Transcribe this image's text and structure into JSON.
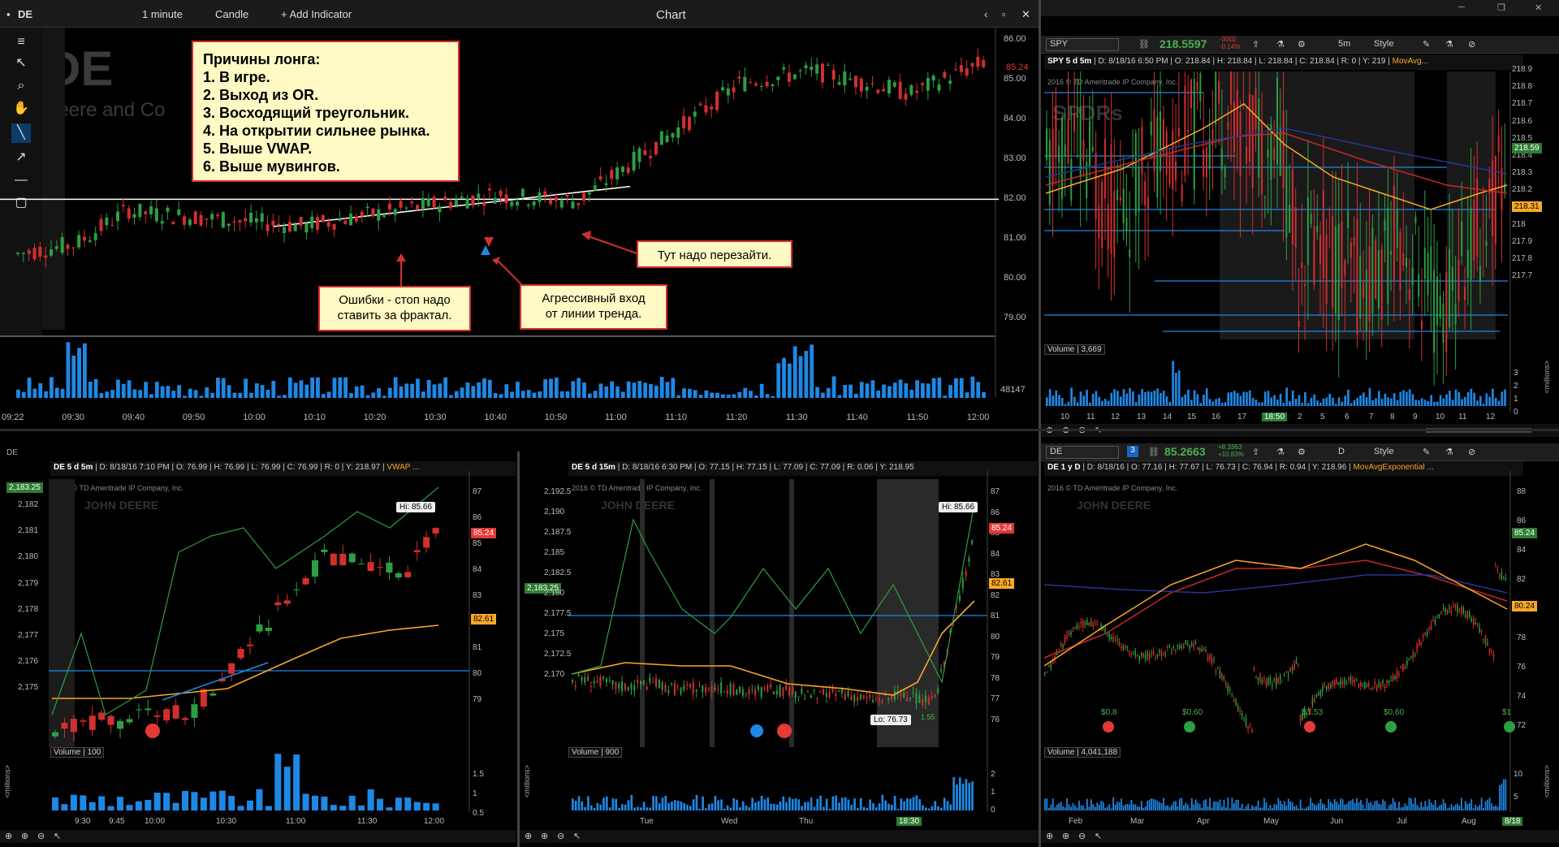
{
  "main_chart": {
    "symbol": "DE",
    "interval": "1 minute",
    "chart_type": "Candle",
    "add_indicator": "+ Add Indicator",
    "window_title": "Chart",
    "watermark_symbol": "DE",
    "watermark_name": "Deere and Co",
    "price_labels": [
      "86.00",
      "85.00",
      "84.00",
      "83.00",
      "82.00",
      "81.00",
      "80.00",
      "79.00"
    ],
    "current_price": "85.24",
    "time_labels": [
      "09:22",
      "09:30",
      "09:40",
      "09:50",
      "10:00",
      "10:10",
      "10:20",
      "10:30",
      "10:40",
      "10:50",
      "11:00",
      "11:10",
      "11:20",
      "11:30",
      "11:40",
      "11:50",
      "12:00"
    ],
    "volume_value": "48147",
    "notes": {
      "main_title": "Причины лонга:",
      "main_items": [
        "1. В игре.",
        "2. Выход из OR.",
        "3. Восходящий треугольник.",
        "4. На открытии сильнее рынка.",
        "5. Выше VWAP.",
        "6. Выше мувингов."
      ],
      "stop_line1": "Ошибки - стоп надо",
      "stop_line2": "ставить за фрактал.",
      "entry_line1": "Агрессивный вход",
      "entry_line2": "от линии тренда.",
      "reenter": "Тут надо перезайти."
    }
  },
  "spy_chart": {
    "symbol": "SPY",
    "price": "218.5597",
    "change": "-3002",
    "change_pct": "-0.14%",
    "interval": "5m",
    "style_label": "Style",
    "header": "SPY 5 d 5m",
    "d": "D: 8/18/16 6:50 PM",
    "o": "O: 218.84",
    "h": "H: 218.84",
    "l": "L: 218.84",
    "c": "C: 218.84",
    "r": "R: 0",
    "y": "Y: 219",
    "study": "MovAvg...",
    "copyright": "2016 © TD Ameritrade IP Company, Inc.",
    "watermark": "SPDRs",
    "price_labels": [
      "218.9",
      "218.8",
      "218.7",
      "218.6",
      "218.5",
      "218.4",
      "218.3",
      "218.2",
      "218.1",
      "218",
      "217.9",
      "217.8",
      "217.7"
    ],
    "tag_price_green": "218.59",
    "tag_price_yellow": "218.31",
    "volume_label": "Volume",
    "volume_value": "3,669",
    "vol_axis": [
      "3",
      "2",
      "1",
      "0"
    ],
    "vol_axis_unit": "<millions>",
    "time_labels": [
      "10",
      "11",
      "12",
      "13",
      "14",
      "15",
      "16",
      "17",
      "18:50",
      "2",
      "5",
      "6",
      "7",
      "8",
      "9",
      "10",
      "11",
      "12"
    ]
  },
  "de5m": {
    "header": "DE 5 d 5m",
    "d": "D: 8/18/16 7:10 PM",
    "o": "O: 76.99",
    "h": "H: 76.99",
    "l": "L: 76.99",
    "c": "C: 76.99",
    "r": "R: 0",
    "y": "Y: 218.97",
    "study": "VWAP ...",
    "copyright": "2016 © TD Ameritrade IP Company, Inc.",
    "watermark": "JOHN DEERE",
    "left_tag": "2,183.25",
    "left_axis": [
      "2,182",
      "2,181",
      "2,180",
      "2,179",
      "2,178",
      "2,177",
      "2,176",
      "2,175"
    ],
    "right_axis": [
      "87",
      "86",
      "85",
      "84",
      "83",
      "82",
      "81",
      "80",
      "79"
    ],
    "hi_label": "Hi: 85.66",
    "tag_red": "85.24",
    "tag_yellow": "82.61",
    "volume_label": "Volume",
    "volume_value": "100",
    "vol_axis": [
      "1.5",
      "1",
      "0.5"
    ],
    "vol_axis_unit": "<millions>",
    "time_labels": [
      "9:30",
      "9:45",
      "10:00",
      "10:30",
      "11:00",
      "11:30",
      "12:00"
    ],
    "tab_label": "DE"
  },
  "de15m": {
    "header": "DE 5 d 15m",
    "d": "D: 8/18/16 6:30 PM",
    "o": "O: 77.15",
    "h": "H: 77.15",
    "l": "L: 77.09",
    "c": "C: 77.09",
    "r": "R: 0.06",
    "y": "Y: 218.95",
    "copyright": "2016 © TD Ameritrade IP Company, Inc.",
    "watermark": "JOHN DEERE",
    "left_tag": "2,183.25",
    "left_axis": [
      "2,192.5",
      "2,190",
      "2,187.5",
      "2,185",
      "2,182.5",
      "2,180",
      "2,177.5",
      "2,175",
      "2,172.5",
      "2,170"
    ],
    "right_axis": [
      "87",
      "86",
      "85",
      "84",
      "83",
      "82",
      "81",
      "80",
      "79",
      "78",
      "77",
      "76"
    ],
    "hi_label": "Hi: 85.66",
    "lo_label": "Lo: 76.73",
    "tag_red": "85.24",
    "tag_yellow": "82.61",
    "small_value": "1.55",
    "volume_label": "Volume",
    "volume_value": "900",
    "vol_axis": [
      "2",
      "1",
      "0"
    ],
    "vol_axis_unit": "<millions>",
    "time_labels": [
      "Tue",
      "Wed",
      "Thu",
      "18:30"
    ]
  },
  "de1y": {
    "symbol": "DE",
    "price": "85.2663",
    "change": "+8.3363",
    "change_pct": "+10.83%",
    "interval": "D",
    "style_label": "Style",
    "header": "DE 1 y D",
    "d": "D: 8/18/16",
    "o": "O: 77.16",
    "h": "H: 77.67",
    "l": "L: 76.73",
    "c": "C: 76.94",
    "r": "R: 0.94",
    "y": "Y: 218.96",
    "study": "MovAvgExponential ...",
    "copyright": "2016 © TD Ameritrade IP Company, Inc.",
    "watermark": "JOHN DEERE",
    "right_axis": [
      "88",
      "86",
      "84",
      "82",
      "80",
      "78",
      "76",
      "74",
      "72"
    ],
    "tag_green": "85.24",
    "tag_yellow": "80.24",
    "dividends": [
      "$0.8",
      "$0.60",
      "$1.53",
      "$0.60",
      "$1"
    ],
    "volume_label": "Volume",
    "volume_value": "4,041,188",
    "vol_axis": [
      "10",
      "5"
    ],
    "vol_axis_unit": "<millions>",
    "time_labels": [
      "Feb",
      "Mar",
      "Apr",
      "May",
      "Jun",
      "Jul",
      "Aug",
      "8/18"
    ]
  },
  "colors": {
    "up": "#2e7d32",
    "down": "#c62828",
    "blue": "#1565c0",
    "yellow": "#f9a825",
    "volume": "#1e88e5"
  }
}
